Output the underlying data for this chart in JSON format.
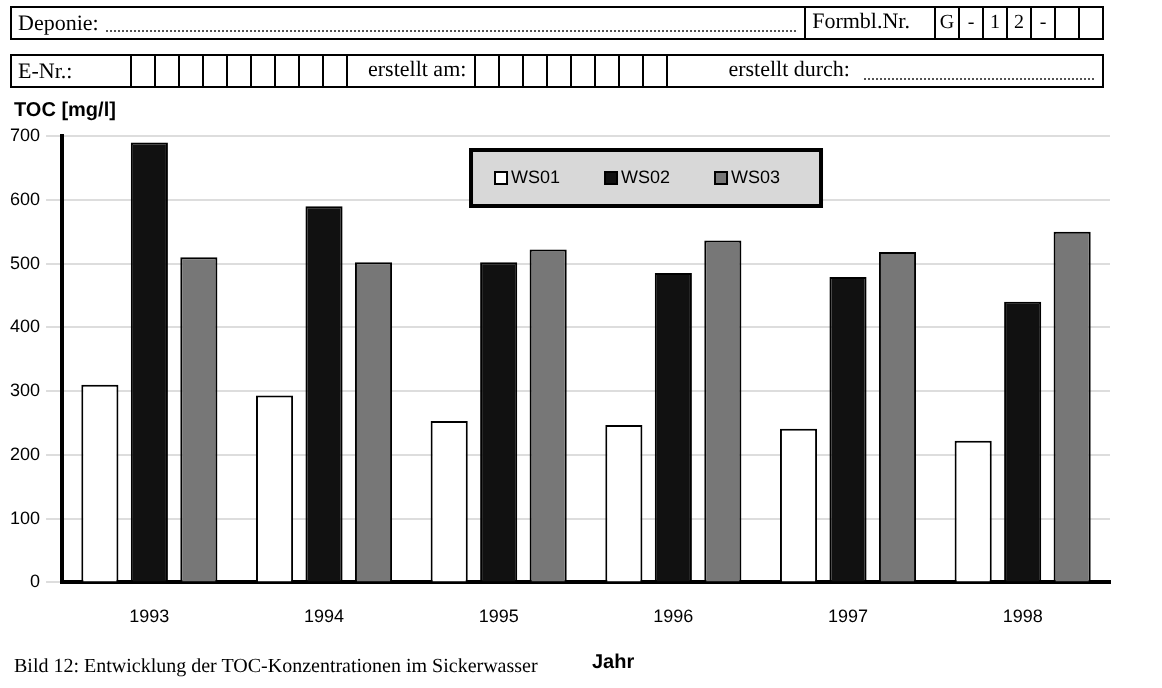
{
  "chart_data": {
    "type": "bar",
    "ylabel": "TOC [mg/l]",
    "xlabel": "Jahr",
    "categories": [
      "1993",
      "1994",
      "1995",
      "1996",
      "1997",
      "1998"
    ],
    "series": [
      {
        "name": "WS01",
        "color": "#ffffff",
        "values": [
          310,
          293,
          253,
          247,
          241,
          222
        ]
      },
      {
        "name": "WS02",
        "color": "#111111",
        "values": [
          690,
          590,
          502,
          485,
          479,
          440
        ]
      },
      {
        "name": "WS03",
        "color": "#777777",
        "values": [
          510,
          502,
          522,
          536,
          518,
          550
        ]
      }
    ],
    "ylim": [
      0,
      700
    ],
    "yticks": [
      0,
      100,
      200,
      300,
      400,
      500,
      600,
      700
    ],
    "grid": "y",
    "legend": "top",
    "annotations": [
      "Deponie:",
      "Formbl.Nr.",
      "G - 1 2 -",
      "E-Nr.:",
      "erstellt am:",
      "erstellt durch:",
      "Bild 12: Entwicklung der TOC-Konzentrationen im Sickerwasser"
    ]
  }
}
